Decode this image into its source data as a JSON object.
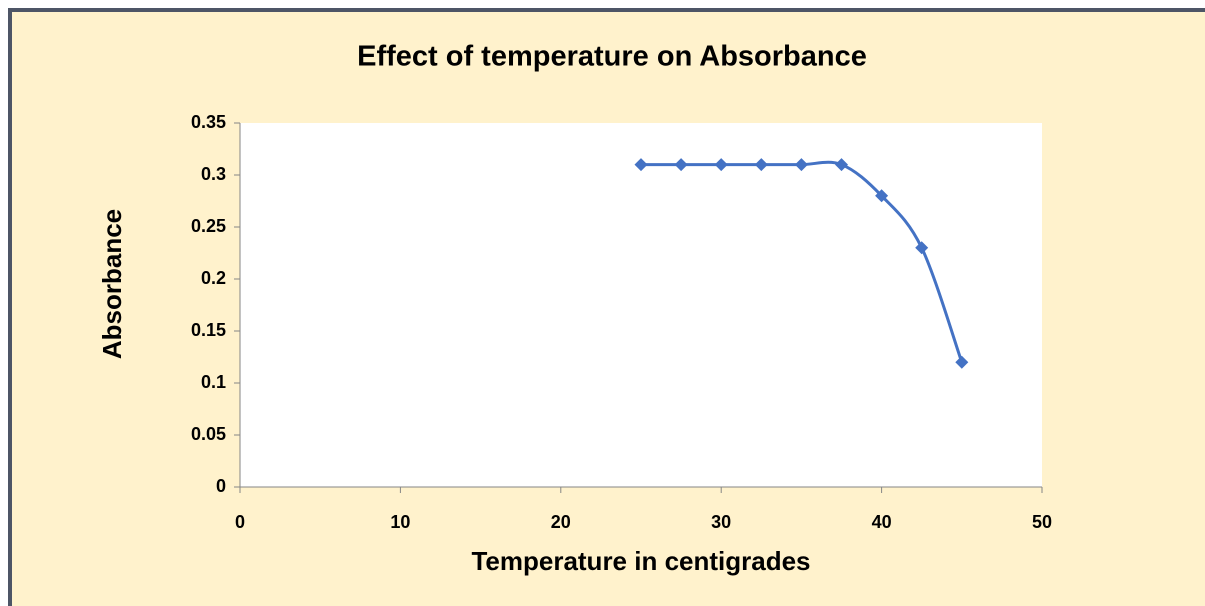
{
  "chart_data": {
    "type": "line",
    "title": "Effect of temperature on Absorbance",
    "xlabel": "Temperature in centigrades",
    "ylabel": "Absorbance",
    "x": [
      25,
      27.5,
      30,
      32.5,
      35,
      37.5,
      40,
      42.5,
      45
    ],
    "values": [
      0.31,
      0.31,
      0.31,
      0.31,
      0.31,
      0.31,
      0.28,
      0.23,
      0.12
    ],
    "color": "#4472c4",
    "smooth": true,
    "marker": "diamond",
    "xlim": [
      0,
      50
    ],
    "xticks": [
      0,
      10,
      20,
      30,
      40,
      50
    ],
    "ylim": [
      0,
      0.35
    ],
    "yticks": [
      0,
      0.05,
      0.1,
      0.15,
      0.2,
      0.25,
      0.3,
      0.35
    ],
    "grid": false
  }
}
